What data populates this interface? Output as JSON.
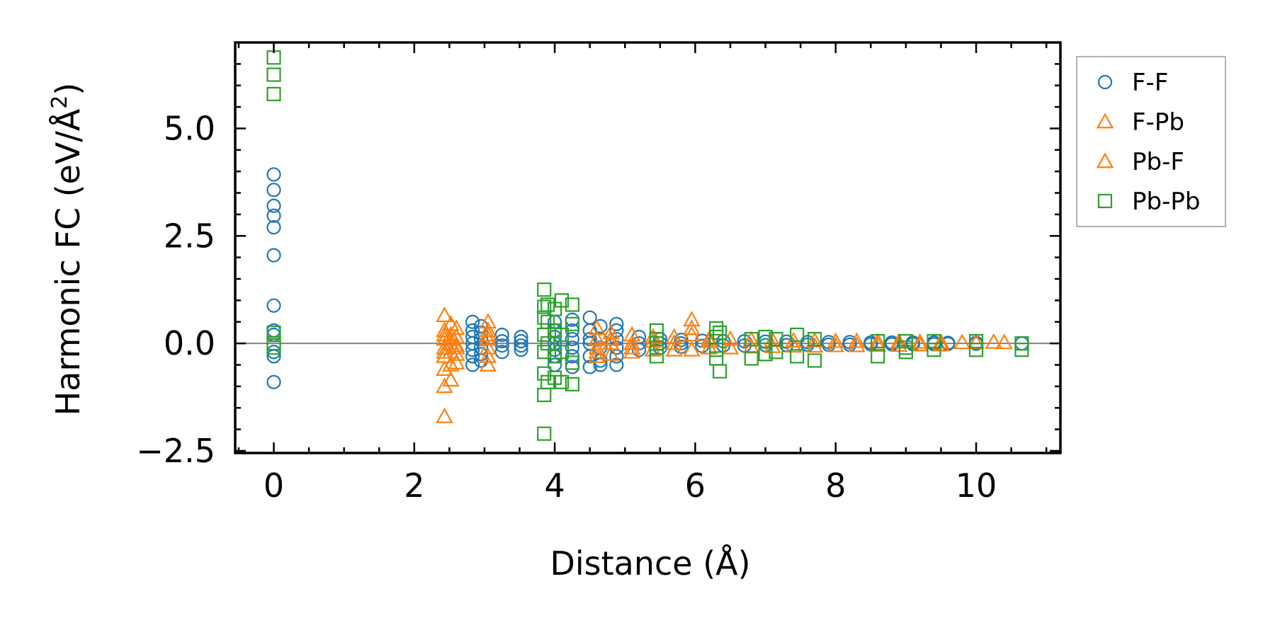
{
  "chart_data": {
    "type": "scatter",
    "xlabel": "Distance (Å)",
    "ylabel_main": "Harmonic FC (eV/Å",
    "ylabel_sup": "2",
    "ylabel_end": ")",
    "xlim": [
      -0.55,
      11.2
    ],
    "ylim": [
      -2.55,
      7.0
    ],
    "xticks": [
      0,
      2,
      4,
      6,
      8,
      10
    ],
    "xtick_labels": [
      "0",
      "2",
      "4",
      "6",
      "8",
      "10"
    ],
    "yticks": [
      -2.5,
      0.0,
      2.5,
      5.0
    ],
    "ytick_labels": [
      "−2.5",
      "0.0",
      "2.5",
      "5.0"
    ],
    "zero_line": 0,
    "grid": false,
    "legend_position": "right-top",
    "series": [
      {
        "name": "F-F",
        "marker": "circle",
        "color": "#1f77b4",
        "x": [
          0,
          0,
          0,
          0,
          0,
          0,
          0,
          0,
          0,
          0,
          0,
          0,
          2.83,
          2.83,
          2.83,
          2.83,
          2.83,
          2.83,
          2.83,
          2.95,
          2.95,
          2.95,
          2.95,
          2.95,
          2.95,
          3.25,
          3.25,
          3.25,
          3.25,
          3.52,
          3.52,
          3.52,
          3.52,
          4.0,
          4.0,
          4.0,
          4.0,
          4.0,
          4.0,
          4.0,
          4.25,
          4.25,
          4.25,
          4.25,
          4.25,
          4.25,
          4.5,
          4.5,
          4.5,
          4.5,
          4.5,
          4.5,
          4.65,
          4.65,
          4.65,
          4.65,
          4.65,
          4.88,
          4.88,
          4.88,
          4.88,
          4.88,
          4.88,
          5.2,
          5.2,
          5.2,
          5.5,
          5.5,
          5.5,
          5.8,
          5.8,
          5.8,
          6.1,
          6.1,
          6.4,
          6.4,
          6.7,
          6.7,
          7.0,
          7.0,
          7.3,
          7.3,
          7.6,
          7.6,
          7.9,
          7.9,
          8.2,
          8.2,
          8.5,
          8.5,
          8.8,
          8.8,
          9.1,
          9.1,
          9.4,
          9.4,
          9.6,
          9.6,
          10.0,
          10.0,
          10.65
        ],
        "y": [
          3.93,
          3.57,
          3.2,
          2.97,
          2.7,
          2.05,
          0.88,
          0.3,
          0.2,
          -0.2,
          -0.3,
          -0.9,
          0.5,
          0.3,
          0.15,
          0.0,
          -0.15,
          -0.3,
          -0.5,
          0.4,
          0.25,
          0.1,
          -0.1,
          -0.25,
          -0.4,
          0.2,
          0.05,
          -0.05,
          -0.2,
          0.15,
          0.05,
          -0.05,
          -0.15,
          0.3,
          0.15,
          0.0,
          -0.15,
          -0.3,
          0.5,
          -0.5,
          0.55,
          0.3,
          0.1,
          -0.1,
          -0.3,
          -0.55,
          0.6,
          0.3,
          0.0,
          -0.3,
          -0.55,
          0.1,
          0.4,
          0.1,
          -0.1,
          -0.4,
          -0.5,
          0.45,
          0.3,
          0.1,
          -0.1,
          -0.3,
          -0.5,
          0.15,
          0.0,
          -0.15,
          0.1,
          0.0,
          -0.1,
          0.08,
          0.0,
          -0.08,
          0.06,
          -0.06,
          0.05,
          -0.05,
          0.05,
          -0.05,
          0.04,
          -0.04,
          0.04,
          -0.04,
          0.03,
          -0.03,
          0.03,
          -0.03,
          0.03,
          -0.03,
          0.02,
          -0.02,
          0.02,
          -0.02,
          0.02,
          -0.02,
          0.02,
          -0.02,
          0.01,
          -0.01,
          0.01,
          -0.01,
          0.0
        ]
      },
      {
        "name": "F-Pb",
        "marker": "triangle",
        "color": "#ff7f0e",
        "x": [
          2.43,
          2.43,
          2.43,
          2.43,
          2.43,
          2.43,
          2.43,
          2.43,
          2.52,
          2.52,
          2.52,
          2.52,
          2.52,
          2.52,
          2.6,
          2.6,
          2.6,
          2.6,
          2.6,
          3.05,
          3.05,
          3.05,
          3.05,
          3.05,
          3.05,
          4.6,
          4.6,
          4.6,
          4.6,
          4.8,
          4.8,
          4.8,
          5.1,
          5.1,
          5.1,
          5.4,
          5.4,
          5.7,
          5.7,
          5.7,
          5.95,
          5.95,
          5.95,
          6.2,
          6.2,
          6.5,
          6.5,
          6.8,
          6.8,
          7.1,
          7.1,
          7.4,
          7.4,
          7.7,
          7.7,
          8.0,
          8.0,
          8.3,
          8.3,
          8.6,
          8.6,
          8.9,
          8.9,
          9.2,
          9.2,
          9.5,
          9.5,
          9.8,
          10.0,
          10.25,
          10.4
        ],
        "y": [
          0.65,
          0.3,
          0.1,
          -0.1,
          -0.3,
          -0.6,
          -1.0,
          -1.7,
          0.45,
          0.2,
          0.0,
          -0.2,
          -0.5,
          -0.85,
          0.35,
          0.15,
          -0.05,
          -0.25,
          -0.45,
          0.5,
          0.3,
          0.1,
          -0.1,
          -0.3,
          -0.5,
          0.35,
          0.1,
          -0.1,
          -0.3,
          0.25,
          0.0,
          -0.25,
          0.2,
          0.0,
          -0.2,
          0.15,
          -0.15,
          0.15,
          0.0,
          -0.15,
          0.55,
          0.2,
          -0.15,
          0.1,
          -0.1,
          0.1,
          -0.1,
          0.08,
          -0.08,
          0.07,
          -0.07,
          0.06,
          -0.06,
          0.06,
          -0.06,
          0.05,
          -0.05,
          0.05,
          -0.05,
          0.04,
          -0.04,
          0.04,
          -0.04,
          0.03,
          -0.03,
          0.03,
          -0.03,
          0.02,
          0.02,
          0.03,
          0.02
        ]
      },
      {
        "name": "Pb-F",
        "marker": "triangle",
        "color": "#ff7f0e",
        "x": [
          2.43,
          2.43,
          2.52,
          2.6,
          3.05,
          4.6,
          4.8,
          5.1,
          5.4,
          5.95,
          6.2
        ],
        "y": [
          0.2,
          -0.2,
          0.1,
          -0.1,
          0.2,
          -0.2,
          0.1,
          -0.1,
          0.05,
          0.35,
          0.05
        ]
      },
      {
        "name": "Pb-Pb",
        "marker": "square",
        "color": "#2ca02c",
        "x": [
          0,
          0,
          0,
          0,
          0,
          0,
          3.85,
          3.85,
          3.85,
          3.85,
          3.85,
          3.85,
          3.85,
          3.85,
          3.9,
          3.9,
          3.9,
          3.9,
          4.0,
          4.0,
          4.0,
          4.0,
          4.1,
          4.1,
          4.1,
          4.1,
          4.25,
          4.25,
          4.25,
          4.25,
          5.45,
          5.45,
          5.45,
          5.45,
          6.3,
          6.3,
          6.3,
          6.3,
          6.35,
          6.35,
          6.8,
          6.8,
          7.0,
          7.0,
          7.15,
          7.15,
          7.45,
          7.45,
          7.7,
          7.7,
          8.6,
          8.6,
          9.0,
          9.0,
          9.0,
          9.4,
          9.4,
          10.0,
          10.0,
          10.65,
          10.65
        ],
        "y": [
          6.65,
          6.25,
          5.8,
          0.25,
          0.0,
          -0.1,
          1.25,
          0.85,
          0.6,
          0.2,
          -0.2,
          -0.7,
          -1.2,
          -2.1,
          0.9,
          0.5,
          0.0,
          -0.9,
          0.8,
          0.3,
          -0.3,
          -0.8,
          1.0,
          0.2,
          -0.2,
          -0.9,
          0.9,
          0.45,
          -0.45,
          -0.95,
          0.3,
          0.1,
          -0.1,
          -0.3,
          0.35,
          0.15,
          -0.15,
          -0.35,
          -0.65,
          0.25,
          0.1,
          -0.35,
          0.15,
          -0.25,
          0.1,
          -0.2,
          0.2,
          -0.3,
          0.1,
          -0.4,
          0.05,
          -0.3,
          0.05,
          -0.1,
          -0.2,
          0.05,
          -0.15,
          0.05,
          -0.15,
          0.0,
          -0.15
        ]
      }
    ]
  }
}
